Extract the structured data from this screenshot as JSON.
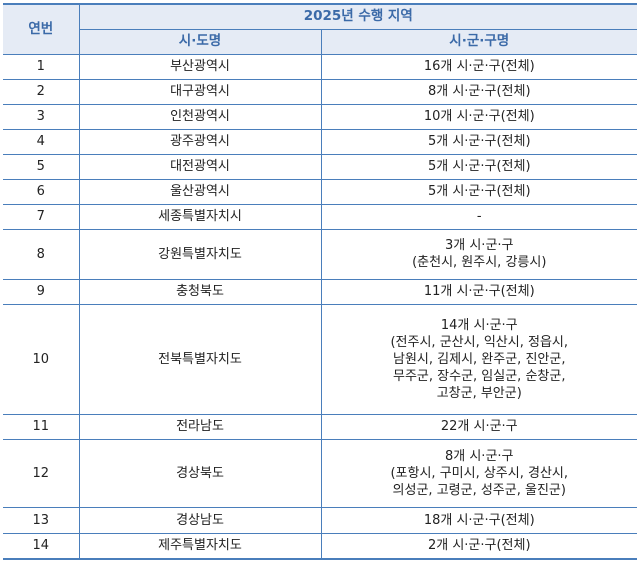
{
  "header": {
    "no": "연번",
    "group": "2025년 수행 지역",
    "province": "시·도명",
    "district": "시·군·구명"
  },
  "rows": [
    {
      "no": "1",
      "province": "부산광역시",
      "district": "16개 시·군·구(전체)"
    },
    {
      "no": "2",
      "province": "대구광역시",
      "district": "8개 시·군·구(전체)"
    },
    {
      "no": "3",
      "province": "인천광역시",
      "district": "10개 시·군·구(전체)"
    },
    {
      "no": "4",
      "province": "광주광역시",
      "district": "5개 시·군·구(전체)"
    },
    {
      "no": "5",
      "province": "대전광역시",
      "district": "5개 시·군·구(전체)"
    },
    {
      "no": "6",
      "province": "울산광역시",
      "district": "5개 시·군·구(전체)"
    },
    {
      "no": "7",
      "province": "세종특별자치시",
      "district": "-"
    },
    {
      "no": "8",
      "province": "강원특별자치도",
      "district": "3개 시·군·구\n(춘천시, 원주시, 강릉시)"
    },
    {
      "no": "9",
      "province": "충청북도",
      "district": "11개 시·군·구(전체)"
    },
    {
      "no": "10",
      "province": "전북특별자치도",
      "district": "14개 시·군·구\n(전주시, 군산시, 익산시, 정읍시,\n남원시, 김제시, 완주군, 진안군,\n무주군, 장수군, 임실군, 순창군,\n고창군, 부안군)"
    },
    {
      "no": "11",
      "province": "전라남도",
      "district": "22개 시·군·구"
    },
    {
      "no": "12",
      "province": "경상북도",
      "district": "8개 시·군·구\n(포항시, 구미시, 상주시, 경산시,\n의성군, 고령군, 성주군, 울진군)"
    },
    {
      "no": "13",
      "province": "경상남도",
      "district": "18개 시·군·구(전체)"
    },
    {
      "no": "14",
      "province": "제주특별자치도",
      "district": "2개 시·군·구(전체)"
    }
  ]
}
